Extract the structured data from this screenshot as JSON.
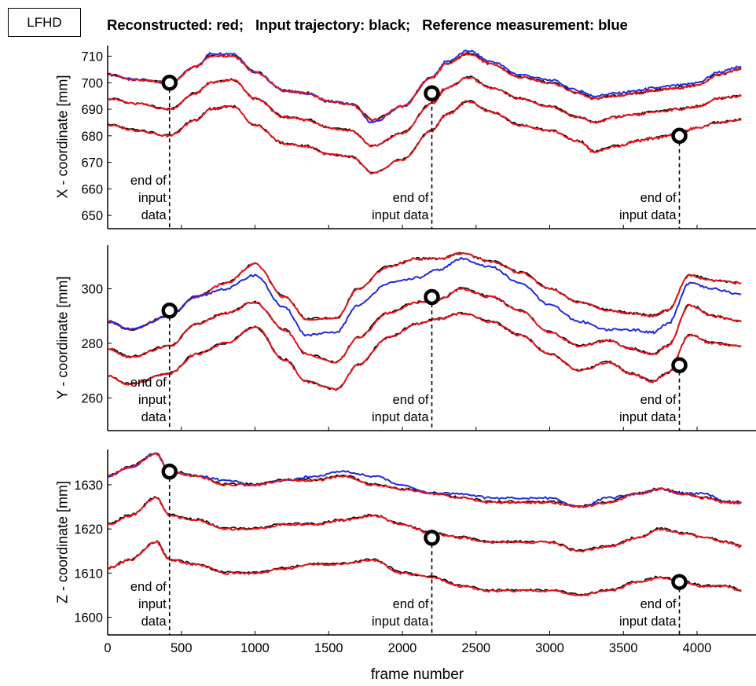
{
  "label_box": "LFHD",
  "headline": {
    "part1": "Reconstructed: red;",
    "part2": "Input trajectory: black;",
    "part3": "Reference measurement: blue"
  },
  "colors": {
    "reconstructed": "#e8141b",
    "input": "#000000",
    "reference": "#1f2bdb",
    "marker": "#000000"
  },
  "annotation": {
    "line1": "end of",
    "line2": "input",
    "line3": "data",
    "line2b": "input data"
  },
  "chart_data": [
    {
      "type": "line",
      "ylabel": "X - coordinate [mm]",
      "xlabel": "",
      "xlim": [
        0,
        4400
      ],
      "ylim": [
        645,
        714
      ],
      "yticks": [
        650,
        660,
        670,
        680,
        690,
        700,
        710
      ],
      "xticks": [
        0,
        500,
        1000,
        1500,
        2000,
        2500,
        3000,
        3500,
        4000
      ],
      "series": [
        {
          "role": "reference",
          "x": [
            0,
            200,
            420,
            600,
            700,
            850,
            1000,
            1200,
            1350,
            1500,
            1650,
            1800,
            2000,
            2200,
            2300,
            2450,
            2600,
            2800,
            3000,
            3200,
            3300,
            3450,
            3600,
            3700,
            3880,
            4000,
            4150,
            4300
          ],
          "y": [
            703,
            701,
            700,
            706,
            711,
            711,
            704,
            697,
            696,
            693,
            692,
            685,
            691,
            702,
            708,
            712,
            708,
            703,
            701,
            697,
            695,
            696,
            697,
            698,
            699,
            700,
            704,
            706
          ]
        },
        {
          "role": "reconstructed",
          "x": [
            0,
            200,
            420,
            600,
            700,
            850,
            1000,
            1200,
            1350,
            1500,
            1650,
            1800,
            2000,
            2200,
            2300,
            2450,
            2600,
            2800,
            3000,
            3200,
            3300,
            3450,
            3600,
            3700,
            3880,
            4000,
            4150,
            4300
          ],
          "y": [
            703,
            701,
            700,
            706,
            710,
            710,
            704,
            697,
            696,
            693,
            692,
            686,
            691,
            702,
            707,
            711,
            707,
            702,
            700,
            696,
            694,
            695,
            696,
            697,
            698,
            699,
            703,
            705
          ]
        },
        {
          "role": "reconstructed",
          "x": [
            0,
            200,
            420,
            600,
            700,
            850,
            1000,
            1200,
            1350,
            1500,
            1650,
            1800,
            2000,
            2200,
            2300,
            2450,
            2600,
            2800,
            3000,
            3200,
            3300,
            3450,
            3600,
            3700,
            3880,
            4000,
            4150,
            4300
          ],
          "y": [
            694,
            692,
            690,
            696,
            700,
            701,
            694,
            687,
            686,
            683,
            682,
            676,
            681,
            692,
            698,
            702,
            698,
            694,
            691,
            687,
            685,
            687,
            688,
            689,
            690,
            691,
            694,
            695
          ]
        },
        {
          "role": "reconstructed",
          "x": [
            0,
            200,
            420,
            600,
            700,
            850,
            1000,
            1200,
            1350,
            1500,
            1650,
            1800,
            2000,
            2200,
            2300,
            2450,
            2600,
            2800,
            3000,
            3200,
            3300,
            3450,
            3600,
            3700,
            3880,
            4000,
            4150,
            4300
          ],
          "y": [
            684,
            682,
            680,
            686,
            690,
            691,
            684,
            677,
            676,
            673,
            672,
            666,
            671,
            682,
            688,
            693,
            689,
            684,
            682,
            678,
            674,
            676,
            678,
            679,
            681,
            683,
            685,
            686
          ]
        }
      ],
      "markers": [
        {
          "x": 420,
          "y": 700
        },
        {
          "x": 2200,
          "y": 696
        },
        {
          "x": 3880,
          "y": 680
        }
      ]
    },
    {
      "type": "line",
      "ylabel": "Y - coordinate [mm]",
      "xlabel": "",
      "xlim": [
        0,
        4400
      ],
      "ylim": [
        248,
        316
      ],
      "yticks": [
        260,
        280,
        300
      ],
      "xticks": [
        0,
        500,
        1000,
        1500,
        2000,
        2500,
        3000,
        3500,
        4000
      ],
      "series": [
        {
          "role": "reconstructed",
          "x": [
            0,
            150,
            420,
            600,
            800,
            1000,
            1200,
            1350,
            1550,
            1700,
            1900,
            2100,
            2250,
            2400,
            2600,
            2800,
            3000,
            3200,
            3400,
            3550,
            3700,
            3800,
            3950,
            4100,
            4300
          ],
          "y": [
            288,
            285,
            290,
            297,
            302,
            309,
            297,
            289,
            289,
            300,
            308,
            311,
            311,
            313,
            310,
            306,
            300,
            295,
            292,
            291,
            290,
            292,
            305,
            303,
            302
          ]
        },
        {
          "role": "reference",
          "x": [
            0,
            150,
            420,
            600,
            800,
            1000,
            1200,
            1350,
            1550,
            1700,
            1900,
            2100,
            2250,
            2400,
            2600,
            2800,
            3000,
            3200,
            3400,
            3550,
            3700,
            3800,
            3950,
            4100,
            4300
          ],
          "y": [
            288,
            285,
            290,
            297,
            300,
            305,
            293,
            283,
            284,
            294,
            302,
            304,
            307,
            311,
            308,
            302,
            294,
            288,
            285,
            285,
            284,
            287,
            302,
            300,
            298
          ]
        },
        {
          "role": "reconstructed",
          "x": [
            0,
            150,
            420,
            600,
            800,
            1000,
            1200,
            1350,
            1550,
            1700,
            1900,
            2100,
            2250,
            2400,
            2600,
            2800,
            3000,
            3200,
            3400,
            3550,
            3700,
            3800,
            3950,
            4100,
            4300
          ],
          "y": [
            278,
            275,
            279,
            287,
            291,
            295,
            285,
            276,
            273,
            282,
            291,
            295,
            296,
            300,
            297,
            292,
            284,
            279,
            281,
            278,
            276,
            279,
            294,
            290,
            288
          ]
        },
        {
          "role": "reconstructed",
          "x": [
            0,
            150,
            420,
            600,
            800,
            1000,
            1200,
            1350,
            1550,
            1700,
            1900,
            2100,
            2250,
            2400,
            2600,
            2800,
            3000,
            3200,
            3400,
            3550,
            3700,
            3800,
            3950,
            4100,
            4300
          ],
          "y": [
            268,
            265,
            269,
            276,
            280,
            286,
            274,
            266,
            263,
            272,
            282,
            287,
            289,
            291,
            288,
            283,
            276,
            270,
            273,
            269,
            266,
            269,
            283,
            280,
            279
          ]
        }
      ],
      "markers": [
        {
          "x": 420,
          "y": 292
        },
        {
          "x": 2200,
          "y": 297
        },
        {
          "x": 3880,
          "y": 272
        }
      ]
    },
    {
      "type": "line",
      "ylabel": "Z - coordinate [mm]",
      "xlabel": "frame number",
      "xlim": [
        0,
        4400
      ],
      "ylim": [
        1596,
        1638
      ],
      "yticks": [
        1600,
        1610,
        1620,
        1630
      ],
      "xticks": [
        0,
        500,
        1000,
        1500,
        2000,
        2500,
        3000,
        3500,
        4000
      ],
      "xticklabels": [
        "0",
        "500",
        "1000",
        "1500",
        "2000",
        "2500",
        "3000",
        "3500",
        "4000"
      ],
      "series": [
        {
          "role": "reference",
          "x": [
            0,
            150,
            330,
            420,
            600,
            800,
            1000,
            1200,
            1400,
            1600,
            1800,
            2000,
            2200,
            2400,
            2600,
            2800,
            3000,
            3200,
            3400,
            3600,
            3750,
            3900,
            4050,
            4200,
            4300
          ],
          "y": [
            1632,
            1634,
            1637,
            1633,
            1632,
            1631,
            1630,
            1631,
            1632,
            1633,
            1632,
            1630,
            1628,
            1628,
            1627,
            1627,
            1627,
            1625,
            1627,
            1628,
            1629,
            1628,
            1628,
            1626,
            1626
          ]
        },
        {
          "role": "reconstructed",
          "x": [
            0,
            150,
            330,
            420,
            600,
            800,
            1000,
            1200,
            1400,
            1600,
            1800,
            2000,
            2200,
            2400,
            2600,
            2800,
            3000,
            3200,
            3400,
            3600,
            3750,
            3900,
            4050,
            4200,
            4300
          ],
          "y": [
            1632,
            1634,
            1637,
            1633,
            1632,
            1630,
            1630,
            1631,
            1631,
            1632,
            1630,
            1629,
            1628,
            1627,
            1626,
            1626,
            1626,
            1625,
            1626,
            1628,
            1629,
            1628,
            1627,
            1626,
            1626
          ]
        },
        {
          "role": "reconstructed",
          "x": [
            0,
            150,
            330,
            420,
            600,
            800,
            1000,
            1200,
            1400,
            1600,
            1800,
            2000,
            2200,
            2400,
            2600,
            2800,
            3000,
            3200,
            3400,
            3600,
            3750,
            3900,
            4050,
            4200,
            4300
          ],
          "y": [
            1621,
            1623,
            1627,
            1623,
            1622,
            1620,
            1620,
            1621,
            1621,
            1622,
            1623,
            1621,
            1619,
            1618,
            1617,
            1617,
            1617,
            1615,
            1616,
            1618,
            1620,
            1619,
            1618,
            1617,
            1616
          ]
        },
        {
          "role": "reconstructed",
          "x": [
            0,
            150,
            330,
            420,
            600,
            800,
            1000,
            1200,
            1400,
            1600,
            1800,
            2000,
            2200,
            2400,
            2600,
            2800,
            3000,
            3200,
            3400,
            3600,
            3750,
            3900,
            4050,
            4200,
            4300
          ],
          "y": [
            1611,
            1613,
            1617,
            1613,
            1612,
            1610,
            1610,
            1611,
            1612,
            1612,
            1613,
            1610,
            1609,
            1607,
            1606,
            1606,
            1606,
            1605,
            1606,
            1608,
            1609,
            1608,
            1607,
            1607,
            1606
          ]
        }
      ],
      "markers": [
        {
          "x": 420,
          "y": 1633
        },
        {
          "x": 2200,
          "y": 1618
        },
        {
          "x": 3880,
          "y": 1608
        }
      ]
    }
  ]
}
